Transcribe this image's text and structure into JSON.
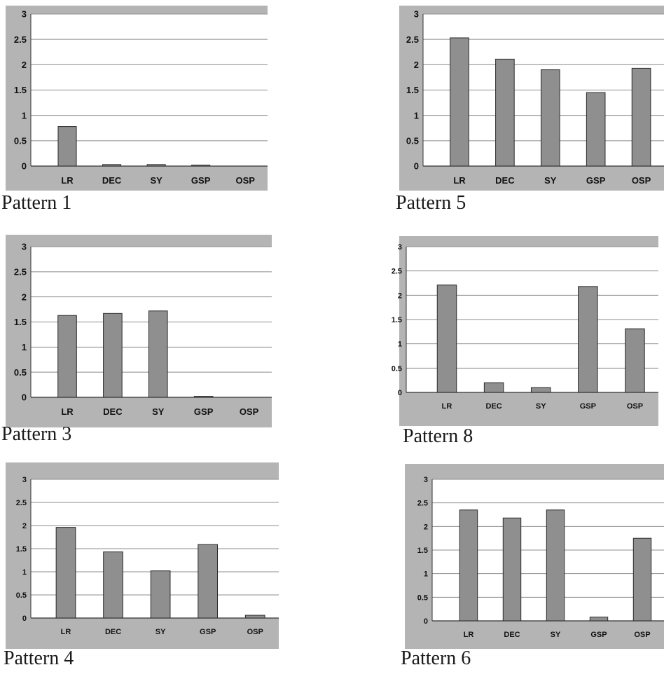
{
  "colors": {
    "frame": "#b4b4b4",
    "plot_area": "#ffffff",
    "bar_fill": "#8f8f8f",
    "bar_stroke": "#2a2a2a",
    "gridline": "#8c8c8c"
  },
  "chart_data": [
    {
      "type": "bar",
      "caption": "Pattern 1",
      "categories": [
        "LR",
        "DEC",
        "SY",
        "GSP",
        "OSP"
      ],
      "values": [
        0.78,
        0.03,
        0.03,
        0.02,
        0
      ],
      "ylim": [
        0,
        3
      ],
      "yticks": [
        "0",
        "0.5",
        "1",
        "1.5",
        "2",
        "2.5",
        "3"
      ],
      "grid": true,
      "legend": "none",
      "xlabel": "",
      "ylabel": ""
    },
    {
      "type": "bar",
      "caption": "Pattern 5",
      "categories": [
        "LR",
        "DEC",
        "SY",
        "GSP",
        "OSP"
      ],
      "values": [
        2.53,
        2.11,
        1.9,
        1.45,
        1.93
      ],
      "ylim": [
        0,
        3
      ],
      "yticks": [
        "0",
        "0.5",
        "1",
        "1.5",
        "2",
        "2.5",
        "3"
      ],
      "grid": true,
      "legend": "none",
      "xlabel": "",
      "ylabel": ""
    },
    {
      "type": "bar",
      "caption": "Pattern 3",
      "categories": [
        "LR",
        "DEC",
        "SY",
        "GSP",
        "OSP"
      ],
      "values": [
        1.63,
        1.67,
        1.72,
        0.02,
        0
      ],
      "ylim": [
        0,
        3
      ],
      "yticks": [
        "0",
        "0.5",
        "1",
        "1.5",
        "2",
        "2.5",
        "3"
      ],
      "grid": true,
      "legend": "none",
      "xlabel": "",
      "ylabel": ""
    },
    {
      "type": "bar",
      "caption": "Pattern 8",
      "categories": [
        "LR",
        "DEC",
        "SY",
        "GSP",
        "OSP"
      ],
      "values": [
        2.21,
        0.2,
        0.1,
        2.18,
        1.31
      ],
      "ylim": [
        0,
        3
      ],
      "yticks": [
        "0",
        "0.5",
        "1",
        "1.5",
        "2",
        "2.5",
        "3"
      ],
      "grid": true,
      "legend": "none",
      "xlabel": "",
      "ylabel": ""
    },
    {
      "type": "bar",
      "caption": "Pattern 4",
      "categories": [
        "LR",
        "DEC",
        "SY",
        "GSP",
        "OSP"
      ],
      "values": [
        1.96,
        1.43,
        1.02,
        1.59,
        0.06
      ],
      "ylim": [
        0,
        3
      ],
      "yticks": [
        "0",
        "0.5",
        "1",
        "1.5",
        "2",
        "2.5",
        "3"
      ],
      "grid": true,
      "legend": "none",
      "xlabel": "",
      "ylabel": ""
    },
    {
      "type": "bar",
      "caption": "Pattern 6",
      "categories": [
        "LR",
        "DEC",
        "SY",
        "GSP",
        "OSP"
      ],
      "values": [
        2.35,
        2.18,
        2.35,
        0.08,
        1.75
      ],
      "ylim": [
        0,
        3
      ],
      "yticks": [
        "0",
        "0.5",
        "1",
        "1.5",
        "2",
        "2.5",
        "3"
      ],
      "grid": true,
      "legend": "none",
      "xlabel": "",
      "ylabel": ""
    }
  ]
}
